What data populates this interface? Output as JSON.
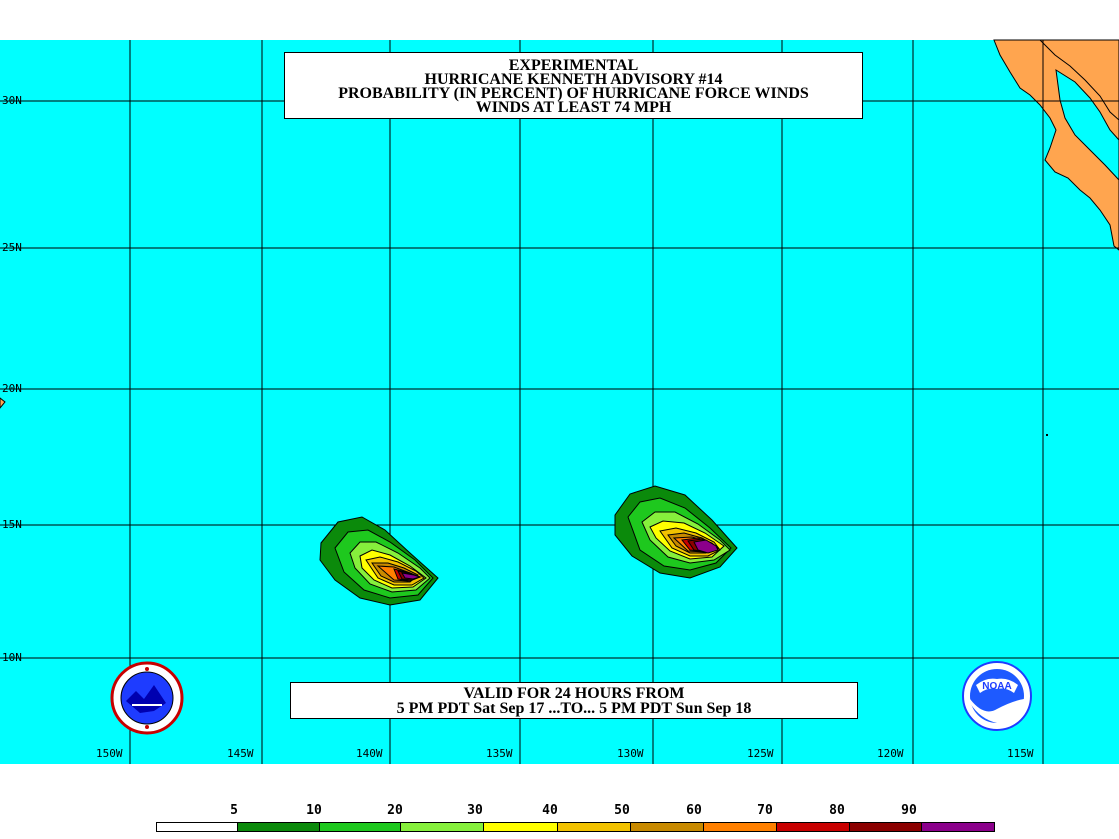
{
  "title": {
    "lines": [
      "EXPERIMENTAL",
      "HURRICANE KENNETH ADVISORY #14",
      "PROBABILITY (IN PERCENT) OF HURRICANE FORCE WINDS",
      "WINDS AT LEAST 74 MPH"
    ]
  },
  "valid": {
    "line1": "VALID FOR 24 HOURS FROM",
    "line2": "5 PM PDT Sat Sep 17 ...TO... 5 PM PDT Sun Sep 18"
  },
  "latitude_labels": [
    "30N",
    "25N",
    "20N",
    "15N",
    "10N"
  ],
  "longitude_labels": [
    "150W",
    "145W",
    "140W",
    "135W",
    "130W",
    "125W",
    "120W",
    "115W"
  ],
  "legend": {
    "labels": [
      "5",
      "10",
      "20",
      "30",
      "40",
      "50",
      "60",
      "70",
      "80",
      "90"
    ],
    "colors": [
      "#ffffff",
      "#0b8a0b",
      "#1ec81e",
      "#86f03c",
      "#ffff00",
      "#f2c200",
      "#c88a00",
      "#ff8000",
      "#c80000",
      "#8b0000",
      "#8b008b"
    ]
  },
  "colors": {
    "ocean": "#00ffff",
    "land": "#ffa54f",
    "grid": "#000000"
  },
  "logos": {
    "left": "nws-logo",
    "right": "noaa-logo",
    "right_text": "NOAA"
  }
}
